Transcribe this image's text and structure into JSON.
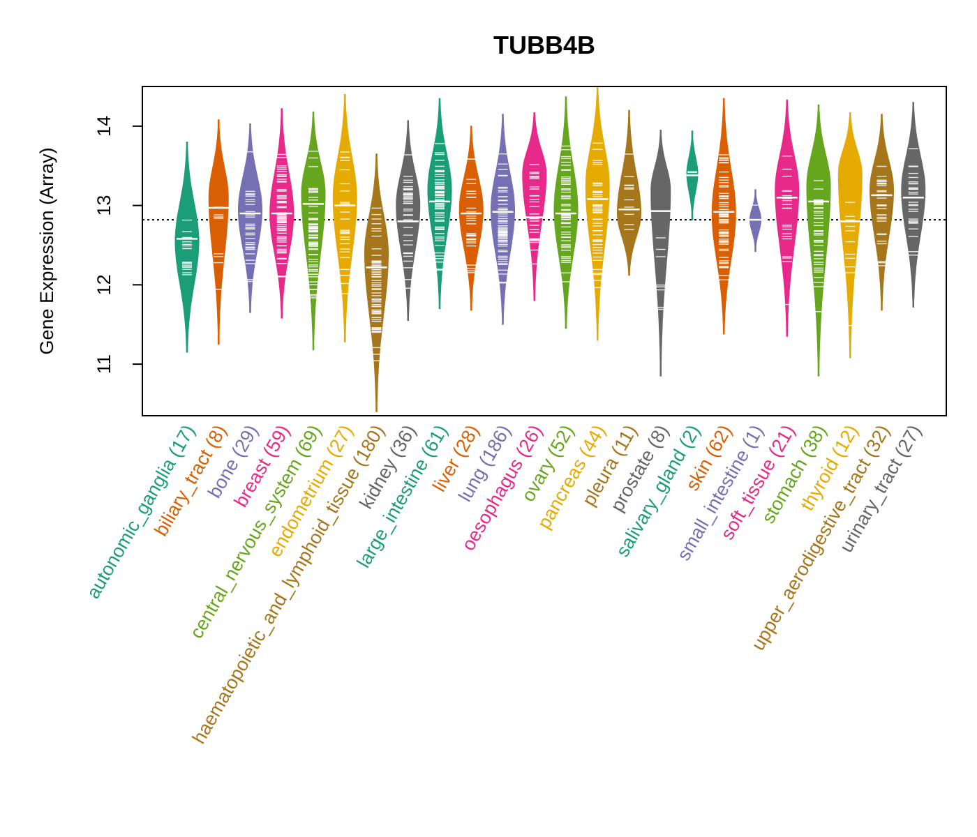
{
  "chart_data": {
    "type": "beanplot",
    "title": "TUBB4B",
    "ylabel": "Gene Expression (Array)",
    "xlabel": "",
    "ylim": [
      10.35,
      14.5
    ],
    "yticks": [
      11,
      12,
      13,
      14
    ],
    "reference_line": 12.82,
    "categories": [
      {
        "name": "autonomic_ganglia",
        "n": "17",
        "color": "#1B9E77",
        "min": 11.15,
        "max": 13.8,
        "median": 12.58,
        "mode": 12.55
      },
      {
        "name": "biliary_tract",
        "n": "8",
        "color": "#D95F02",
        "min": 11.25,
        "max": 14.08,
        "median": 12.97,
        "mode": 13.1
      },
      {
        "name": "bone",
        "n": "29",
        "color": "#7570B3",
        "min": 11.65,
        "max": 14.03,
        "median": 12.9,
        "mode": 12.95
      },
      {
        "name": "breast",
        "n": "59",
        "color": "#E7298A",
        "min": 11.58,
        "max": 14.22,
        "median": 12.9,
        "mode": 12.9
      },
      {
        "name": "central_nervous_system",
        "n": "69",
        "color": "#66A61E",
        "min": 11.18,
        "max": 14.18,
        "median": 13.02,
        "mode": 13.15
      },
      {
        "name": "endometrium",
        "n": "27",
        "color": "#E6AB02",
        "min": 11.28,
        "max": 14.4,
        "median": 13.0,
        "mode": 13.1
      },
      {
        "name": "haematopoietic_and_lymphoid_tissue",
        "n": "180",
        "color": "#A6761D",
        "min": 10.4,
        "max": 13.65,
        "median": 12.22,
        "mode": 12.4
      },
      {
        "name": "kidney",
        "n": "36",
        "color": "#666666",
        "min": 11.55,
        "max": 14.07,
        "median": 12.8,
        "mode": 13.0
      },
      {
        "name": "large_intestine",
        "n": "61",
        "color": "#1B9E77",
        "min": 11.7,
        "max": 14.35,
        "median": 13.05,
        "mode": 13.2
      },
      {
        "name": "liver",
        "n": "28",
        "color": "#D95F02",
        "min": 11.68,
        "max": 14.0,
        "median": 12.9,
        "mode": 12.95
      },
      {
        "name": "lung",
        "n": "186",
        "color": "#7570B3",
        "min": 11.5,
        "max": 14.15,
        "median": 12.92,
        "mode": 12.95
      },
      {
        "name": "oesophagus",
        "n": "26",
        "color": "#E7298A",
        "min": 11.8,
        "max": 14.17,
        "median": 12.85,
        "mode": 13.4
      },
      {
        "name": "ovary",
        "n": "52",
        "color": "#66A61E",
        "min": 11.45,
        "max": 14.37,
        "median": 12.9,
        "mode": 12.95
      },
      {
        "name": "pancreas",
        "n": "44",
        "color": "#E6AB02",
        "min": 11.3,
        "max": 14.5,
        "median": 13.08,
        "mode": 13.25
      },
      {
        "name": "pleura",
        "n": "11",
        "color": "#A6761D",
        "min": 12.12,
        "max": 14.2,
        "median": 12.95,
        "mode": 12.9
      },
      {
        "name": "prostate",
        "n": "8",
        "color": "#666666",
        "min": 10.85,
        "max": 13.95,
        "median": 12.93,
        "mode": 13.2
      },
      {
        "name": "salivary_gland",
        "n": "2",
        "color": "#1B9E77",
        "min": 12.82,
        "max": 13.94,
        "median": 13.38,
        "mode": 13.4
      },
      {
        "name": "skin",
        "n": "62",
        "color": "#D95F02",
        "min": 11.38,
        "max": 14.35,
        "median": 12.92,
        "mode": 12.9
      },
      {
        "name": "small_intestine",
        "n": "1",
        "color": "#7570B3",
        "min": 12.42,
        "max": 13.2,
        "median": 12.82,
        "mode": 12.82
      },
      {
        "name": "soft_tissue",
        "n": "21",
        "color": "#E7298A",
        "min": 11.35,
        "max": 14.33,
        "median": 13.1,
        "mode": 13.2
      },
      {
        "name": "stomach",
        "n": "38",
        "color": "#66A61E",
        "min": 10.85,
        "max": 14.27,
        "median": 13.05,
        "mode": 13.25
      },
      {
        "name": "thyroid",
        "n": "12",
        "color": "#E6AB02",
        "min": 11.08,
        "max": 14.17,
        "median": 12.8,
        "mode": 13.4
      },
      {
        "name": "upper_aerodigestive_tract",
        "n": "32",
        "color": "#A6761D",
        "min": 11.68,
        "max": 14.15,
        "median": 13.13,
        "mode": 13.2
      },
      {
        "name": "urinary_tract",
        "n": "27",
        "color": "#666666",
        "min": 11.72,
        "max": 14.3,
        "median": 13.1,
        "mode": 13.2
      }
    ]
  }
}
